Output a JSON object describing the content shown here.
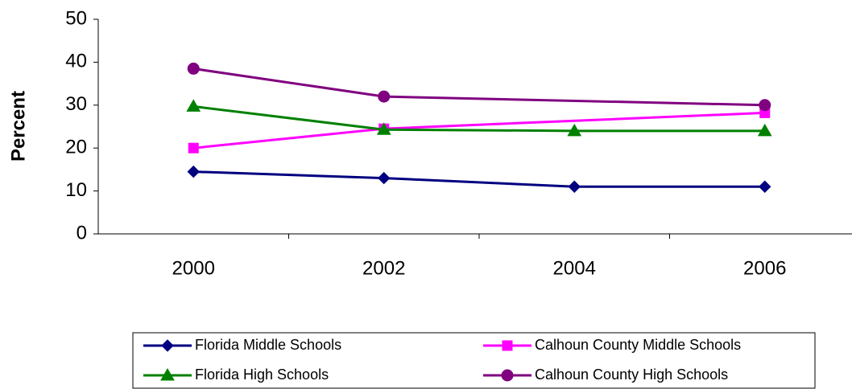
{
  "chart_data": {
    "type": "line",
    "y_label": "Percent",
    "categories": [
      "2000",
      "2002",
      "2004",
      "2006"
    ],
    "series": [
      {
        "name": "Florida Middle Schools",
        "color": "#000080",
        "marker": "diamond",
        "values": [
          14.5,
          13,
          11,
          11
        ]
      },
      {
        "name": "Calhoun County Middle Schools",
        "color": "#ff00ff",
        "marker": "square",
        "values": [
          20,
          24.5,
          null,
          28.2
        ]
      },
      {
        "name": "Florida High Schools",
        "color": "#008000",
        "marker": "triangle",
        "values": [
          29.7,
          24.3,
          24,
          24
        ]
      },
      {
        "name": "Calhoun County High Schools",
        "color": "#800080",
        "marker": "circle",
        "values": [
          38.5,
          32,
          null,
          30
        ]
      }
    ],
    "span_gaps": true,
    "ylim": [
      0,
      50
    ],
    "yticks": [
      0,
      10,
      20,
      30,
      40,
      50
    ],
    "grid": false,
    "legend": "bottom"
  }
}
